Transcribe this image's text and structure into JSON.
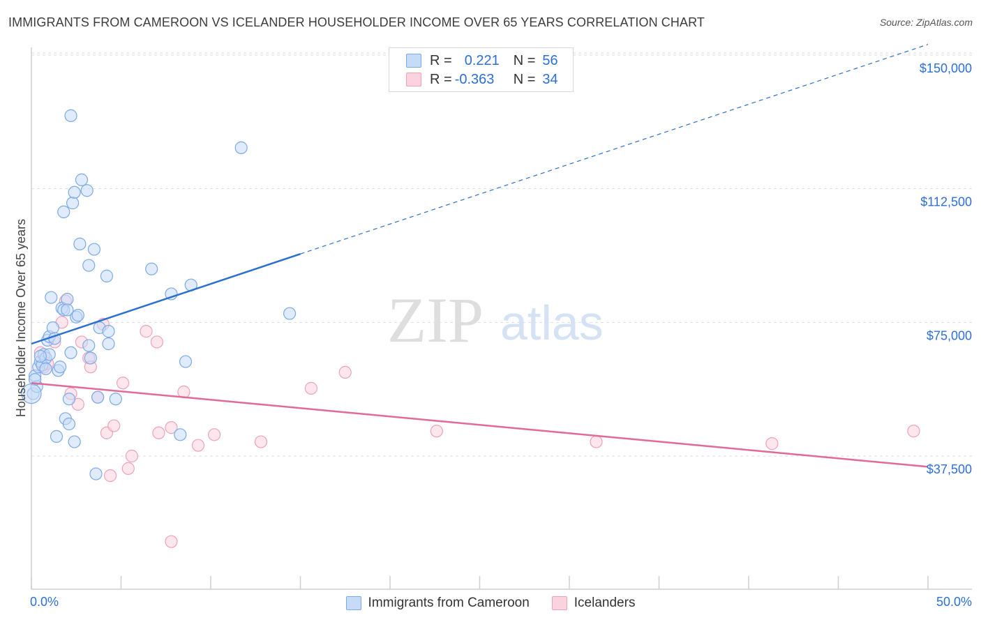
{
  "header": {
    "title": "IMMIGRANTS FROM CAMEROON VS ICELANDER HOUSEHOLDER INCOME OVER 65 YEARS CORRELATION CHART",
    "source": "Source: ZipAtlas.com"
  },
  "watermark": {
    "zip": "ZIP",
    "atlas": "atlas"
  },
  "legend": {
    "rows": [
      {
        "r_label": "R =",
        "r_value": "0.221",
        "n_label": "N =",
        "n_value": "56",
        "color": "#a9c8f5"
      },
      {
        "r_label": "R =",
        "r_value": "-0.363",
        "n_label": "N =",
        "n_value": "34",
        "color": "#f7b8cb"
      }
    ]
  },
  "bottom_legend": {
    "series1": "Immigrants from Cameroon",
    "series2": "Icelanders"
  },
  "chart_data": {
    "type": "scatter",
    "title": "IMMIGRANTS FROM CAMEROON VS ICELANDER HOUSEHOLDER INCOME OVER 65 YEARS CORRELATION CHART",
    "xlabel": "",
    "ylabel": "Householder Income Over 65 years",
    "xlim": [
      0,
      50
    ],
    "ylim": [
      0,
      155000
    ],
    "x_tick_labels": [
      "0.0%",
      "50.0%"
    ],
    "y_ticks": [
      37500,
      75000,
      112500,
      150000
    ],
    "y_tick_labels": [
      "$37,500",
      "$75,000",
      "$112,500",
      "$150,000"
    ],
    "colors": {
      "blue": "#7aaae8",
      "blue_fill": "#c6dbf7",
      "pink": "#f0a0bb",
      "pink_fill": "#fbd3df",
      "blue_line": "#2a70cc",
      "pink_line": "#e06a98"
    },
    "series": [
      {
        "name": "Immigrants from Cameroon",
        "R": 0.221,
        "N": 56,
        "trend": {
          "x0": 0,
          "y0": 69000,
          "x1": 50,
          "y1": 153000,
          "solid_until_x": 15
        },
        "points": [
          [
            0.1,
            55000
          ],
          [
            0.2,
            60000
          ],
          [
            0.3,
            57000
          ],
          [
            0.4,
            62500
          ],
          [
            0.5,
            64000
          ],
          [
            0.6,
            63000
          ],
          [
            0.7,
            66000
          ],
          [
            0.8,
            65000
          ],
          [
            0.9,
            70000
          ],
          [
            1.0,
            71000
          ],
          [
            1.0,
            66000
          ],
          [
            1.1,
            82000
          ],
          [
            1.2,
            73500
          ],
          [
            1.3,
            70500
          ],
          [
            1.4,
            43000
          ],
          [
            1.5,
            61500
          ],
          [
            1.6,
            62500
          ],
          [
            1.7,
            79000
          ],
          [
            1.8,
            78500
          ],
          [
            1.9,
            48000
          ],
          [
            1.8,
            106000
          ],
          [
            2.0,
            81500
          ],
          [
            2.0,
            78500
          ],
          [
            2.1,
            53500
          ],
          [
            2.1,
            46500
          ],
          [
            2.2,
            66500
          ],
          [
            2.3,
            108500
          ],
          [
            2.4,
            111500
          ],
          [
            2.4,
            41500
          ],
          [
            2.5,
            76500
          ],
          [
            2.6,
            77000
          ],
          [
            2.7,
            97000
          ],
          [
            2.8,
            115000
          ],
          [
            3.1,
            112000
          ],
          [
            3.2,
            91000
          ],
          [
            3.2,
            68500
          ],
          [
            3.3,
            65000
          ],
          [
            3.5,
            95500
          ],
          [
            3.6,
            32500
          ],
          [
            3.7,
            54000
          ],
          [
            3.8,
            73500
          ],
          [
            4.2,
            88000
          ],
          [
            4.3,
            72500
          ],
          [
            4.3,
            69000
          ],
          [
            4.7,
            53500
          ],
          [
            2.2,
            133000
          ],
          [
            6.7,
            90000
          ],
          [
            7.8,
            83000
          ],
          [
            8.3,
            43500
          ],
          [
            8.6,
            64000
          ],
          [
            8.9,
            85500
          ],
          [
            11.7,
            124000
          ],
          [
            14.4,
            77500
          ],
          [
            0.2,
            59000
          ],
          [
            0.5,
            65500
          ],
          [
            0.8,
            62000
          ]
        ]
      },
      {
        "name": "Icelanders",
        "R": -0.363,
        "N": 34,
        "trend": {
          "x0": 0,
          "y0": 58000,
          "x1": 50,
          "y1": 34500
        },
        "points": [
          [
            0.5,
            66500
          ],
          [
            0.7,
            62500
          ],
          [
            0.9,
            63500
          ],
          [
            1.3,
            69500
          ],
          [
            1.7,
            75000
          ],
          [
            1.9,
            81000
          ],
          [
            2.2,
            55000
          ],
          [
            2.6,
            52000
          ],
          [
            2.8,
            69500
          ],
          [
            3.2,
            65000
          ],
          [
            3.3,
            62500
          ],
          [
            3.7,
            54000
          ],
          [
            4.0,
            74500
          ],
          [
            4.2,
            44000
          ],
          [
            4.4,
            32000
          ],
          [
            4.6,
            46000
          ],
          [
            5.1,
            58000
          ],
          [
            5.4,
            34000
          ],
          [
            5.6,
            37500
          ],
          [
            6.4,
            72500
          ],
          [
            7.0,
            69500
          ],
          [
            7.1,
            44000
          ],
          [
            7.8,
            45500
          ],
          [
            7.8,
            13500
          ],
          [
            8.5,
            55500
          ],
          [
            9.3,
            40500
          ],
          [
            10.2,
            43500
          ],
          [
            12.8,
            41500
          ],
          [
            15.6,
            56500
          ],
          [
            17.5,
            61000
          ],
          [
            22.6,
            44500
          ],
          [
            31.5,
            41500
          ],
          [
            41.3,
            41000
          ],
          [
            49.2,
            44500
          ]
        ]
      }
    ]
  }
}
